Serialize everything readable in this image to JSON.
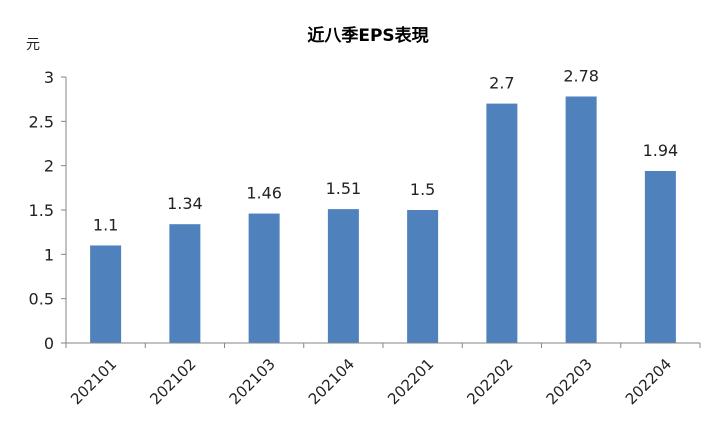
{
  "chart_data": {
    "type": "bar",
    "title": "近八季EPS表現",
    "ylabel": "元",
    "xlabel": "",
    "categories": [
      "202101",
      "202102",
      "202103",
      "202104",
      "202201",
      "202202",
      "202203",
      "202204"
    ],
    "values": [
      1.1,
      1.34,
      1.46,
      1.51,
      1.5,
      2.7,
      2.78,
      1.94
    ],
    "data_labels": [
      "1.1",
      "1.34",
      "1.46",
      "1.51",
      "1.5",
      "2.7",
      "2.78",
      "1.94"
    ],
    "ylim": [
      0,
      3
    ],
    "yticks": [
      0,
      0.5,
      1,
      1.5,
      2,
      2.5,
      3
    ],
    "ytick_labels": [
      "0",
      "0.5",
      "1",
      "1.5",
      "2",
      "2.5",
      "3"
    ],
    "grid": false,
    "legend": "none",
    "bar_color": "#4F81BD"
  }
}
